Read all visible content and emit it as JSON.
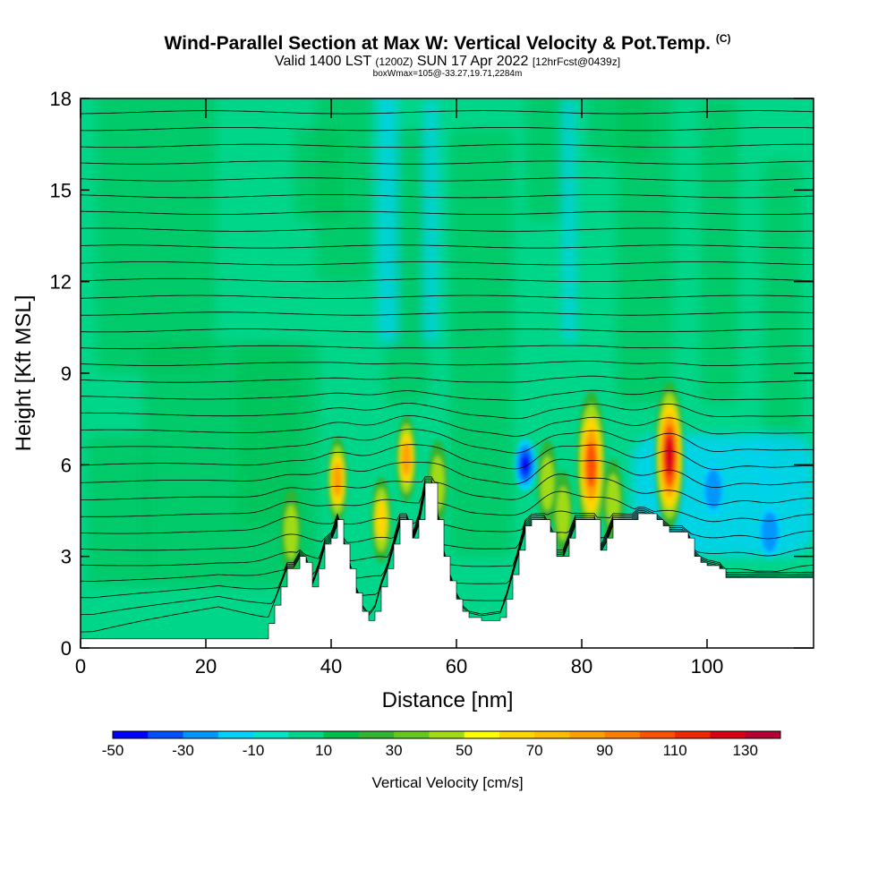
{
  "chart_data": {
    "type": "heatmap",
    "title": "Wind-Parallel Section at Max W: Vertical Velocity & Pot.Temp.",
    "title_mark": "(C)",
    "subtitle_parts": {
      "valid": "Valid 1400 LST",
      "utc": "(1200Z)",
      "date": "SUN 17 Apr 2022",
      "forecast": "[12hrFcst@0439z]"
    },
    "subtitle2": "boxWmax=105@-33.27,19.71,2284m",
    "xlabel": "Distance [nm]",
    "ylabel": "Height [Kft MSL]",
    "xlim": [
      0,
      117
    ],
    "ylim": [
      0,
      18
    ],
    "xticks": [
      0,
      20,
      40,
      60,
      80,
      100
    ],
    "yticks": [
      0,
      3,
      6,
      9,
      12,
      15,
      18
    ],
    "background_value_cm_s": 0,
    "terrain_profile_kft": [
      [
        0,
        0.3
      ],
      [
        28,
        0.3
      ],
      [
        30,
        0.8
      ],
      [
        31,
        1.4
      ],
      [
        32,
        2.0
      ],
      [
        33,
        2.6
      ],
      [
        34,
        2.6
      ],
      [
        35,
        3.0
      ],
      [
        36,
        2.8
      ],
      [
        37,
        2.0
      ],
      [
        38,
        2.6
      ],
      [
        39,
        3.4
      ],
      [
        40,
        3.6
      ],
      [
        41,
        4.2
      ],
      [
        42,
        3.4
      ],
      [
        43,
        2.6
      ],
      [
        44,
        1.8
      ],
      [
        45,
        1.2
      ],
      [
        46,
        0.9
      ],
      [
        47,
        1.2
      ],
      [
        48,
        2.0
      ],
      [
        49,
        2.6
      ],
      [
        50,
        3.4
      ],
      [
        51,
        4.2
      ],
      [
        52,
        4.2
      ],
      [
        53,
        3.6
      ],
      [
        54,
        4.2
      ],
      [
        55,
        5.4
      ],
      [
        56,
        5.4
      ],
      [
        57,
        4.2
      ],
      [
        58,
        3.0
      ],
      [
        59,
        2.2
      ],
      [
        60,
        1.6
      ],
      [
        61,
        1.2
      ],
      [
        62,
        1.0
      ],
      [
        64,
        0.9
      ],
      [
        67,
        1.0
      ],
      [
        68,
        1.6
      ],
      [
        69,
        2.4
      ],
      [
        70,
        3.2
      ],
      [
        71,
        4.0
      ],
      [
        72,
        4.2
      ],
      [
        73,
        4.2
      ],
      [
        74,
        4.2
      ],
      [
        75,
        3.8
      ],
      [
        76,
        3.0
      ],
      [
        77,
        3.0
      ],
      [
        78,
        3.6
      ],
      [
        79,
        4.2
      ],
      [
        80,
        4.2
      ],
      [
        81,
        4.2
      ],
      [
        82,
        4.2
      ],
      [
        83,
        3.2
      ],
      [
        84,
        3.6
      ],
      [
        85,
        4.2
      ],
      [
        86,
        4.2
      ],
      [
        88,
        4.2
      ],
      [
        89,
        4.4
      ],
      [
        90,
        4.4
      ],
      [
        92,
        4.2
      ],
      [
        93,
        4.0
      ],
      [
        94,
        3.8
      ],
      [
        95,
        3.8
      ],
      [
        96,
        3.8
      ],
      [
        97,
        3.6
      ],
      [
        98,
        3.0
      ],
      [
        99,
        2.8
      ],
      [
        100,
        2.7
      ],
      [
        102,
        2.6
      ],
      [
        103,
        2.3
      ],
      [
        117,
        2.3
      ]
    ],
    "updraft_cores": [
      {
        "x": 33.6,
        "y": 3.8,
        "max_cm_s": 50
      },
      {
        "x": 41.0,
        "y": 5.5,
        "max_cm_s": 80
      },
      {
        "x": 48.0,
        "y": 4.2,
        "max_cm_s": 60
      },
      {
        "x": 52.0,
        "y": 6.2,
        "max_cm_s": 80
      },
      {
        "x": 57.0,
        "y": 5.4,
        "max_cm_s": 40
      },
      {
        "x": 74.5,
        "y": 5.4,
        "max_cm_s": 50
      },
      {
        "x": 77.0,
        "y": 4.4,
        "max_cm_s": 50
      },
      {
        "x": 81.5,
        "y": 6.0,
        "max_cm_s": 100
      },
      {
        "x": 85.0,
        "y": 4.8,
        "max_cm_s": 40
      },
      {
        "x": 94.0,
        "y": 6.3,
        "max_cm_s": 130
      }
    ],
    "downdraft_cores": [
      {
        "x": 71.0,
        "y": 6.0,
        "min_cm_s": -40
      },
      {
        "x": 101.0,
        "y": 5.2,
        "min_cm_s": -20
      },
      {
        "x": 110.0,
        "y": 3.8,
        "min_cm_s": -20
      }
    ],
    "colorbar": {
      "label": "Vertical Velocity [cm/s]",
      "bins_cm_s": [
        -50,
        -40,
        -30,
        -20,
        -10,
        0,
        10,
        20,
        30,
        40,
        50,
        60,
        70,
        80,
        90,
        100,
        110,
        120,
        130,
        140
      ],
      "colors": [
        "#0000ff",
        "#0050ff",
        "#0096ff",
        "#00d2ff",
        "#00e6c8",
        "#00d68a",
        "#00be4a",
        "#32b432",
        "#64c81e",
        "#a0dc14",
        "#ffff00",
        "#ffd700",
        "#ffbe00",
        "#ffa000",
        "#ff7d00",
        "#ff5000",
        "#f02800",
        "#dc0014",
        "#b40032"
      ],
      "tick_labels": [
        "-50",
        "-30",
        "-10",
        "10",
        "30",
        "50",
        "70",
        "90",
        "110",
        "130"
      ]
    }
  }
}
